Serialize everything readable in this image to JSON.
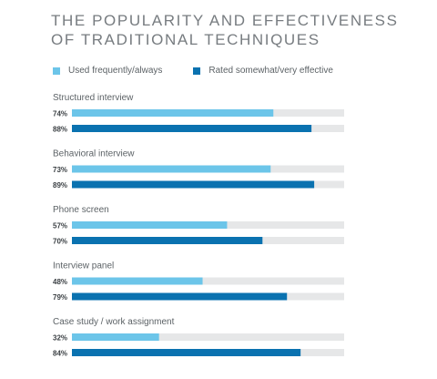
{
  "title_lines": [
    "THE POPULARITY AND EFFECTIVENESS",
    "OF TRADITIONAL TECHNIQUES"
  ],
  "legend": [
    {
      "label": "Used frequently/always",
      "color": "#6cc5e9"
    },
    {
      "label": "Rated somewhat/very effective",
      "color": "#0a72b0"
    }
  ],
  "chart_data": {
    "type": "bar",
    "orientation": "horizontal",
    "categories": [
      "Structured interview",
      "Behavioral interview",
      "Phone screen",
      "Interview panel",
      "Case study / work assignment"
    ],
    "series": [
      {
        "name": "Used frequently/always",
        "values": [
          74,
          73,
          57,
          48,
          32
        ],
        "labels": [
          "74%",
          "73%",
          "57%",
          "48%",
          "32%"
        ],
        "color": "#6cc5e9"
      },
      {
        "name": "Rated somewhat/very effective",
        "values": [
          88,
          89,
          70,
          79,
          84
        ],
        "labels": [
          "88%",
          "89%",
          "70%",
          "79%",
          "84%"
        ],
        "color": "#0a72b0"
      }
    ],
    "track_color": "#e6e7e8",
    "xlim": [
      0,
      100
    ],
    "unit": "%",
    "grid": false,
    "legend_position": "top-left"
  }
}
